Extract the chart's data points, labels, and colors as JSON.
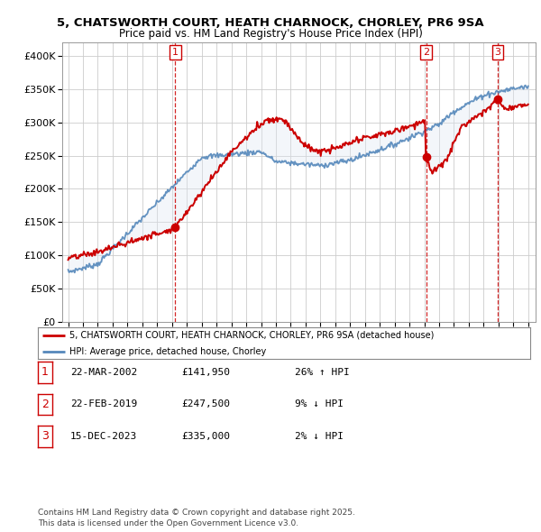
{
  "title": "5, CHATSWORTH COURT, HEATH CHARNOCK, CHORLEY, PR6 9SA",
  "subtitle": "Price paid vs. HM Land Registry's House Price Index (HPI)",
  "ylim": [
    0,
    420000
  ],
  "yticks": [
    0,
    50000,
    100000,
    150000,
    200000,
    250000,
    300000,
    350000,
    400000
  ],
  "ytick_labels": [
    "£0",
    "£50K",
    "£100K",
    "£150K",
    "£200K",
    "£250K",
    "£300K",
    "£350K",
    "£400K"
  ],
  "sale_years": [
    2002.22,
    2019.12,
    2023.95
  ],
  "sale_prices": [
    141950,
    247500,
    335000
  ],
  "sale_labels": [
    "1",
    "2",
    "3"
  ],
  "legend_line1": "5, CHATSWORTH COURT, HEATH CHARNOCK, CHORLEY, PR6 9SA (detached house)",
  "legend_line2": "HPI: Average price, detached house, Chorley",
  "table_data": [
    [
      "1",
      "22-MAR-2002",
      "£141,950",
      "26% ↑ HPI"
    ],
    [
      "2",
      "22-FEB-2019",
      "£247,500",
      "9% ↓ HPI"
    ],
    [
      "3",
      "15-DEC-2023",
      "£335,000",
      "2% ↓ HPI"
    ]
  ],
  "footnote": "Contains HM Land Registry data © Crown copyright and database right 2025.\nThis data is licensed under the Open Government Licence v3.0.",
  "line_color_red": "#cc0000",
  "line_color_blue": "#5588bb",
  "fill_color_blue": "#dde8f3",
  "bg_color": "#ffffff",
  "grid_color": "#cccccc",
  "dashed_color": "#cc0000",
  "xlim_left": 1994.6,
  "xlim_right": 2026.5
}
